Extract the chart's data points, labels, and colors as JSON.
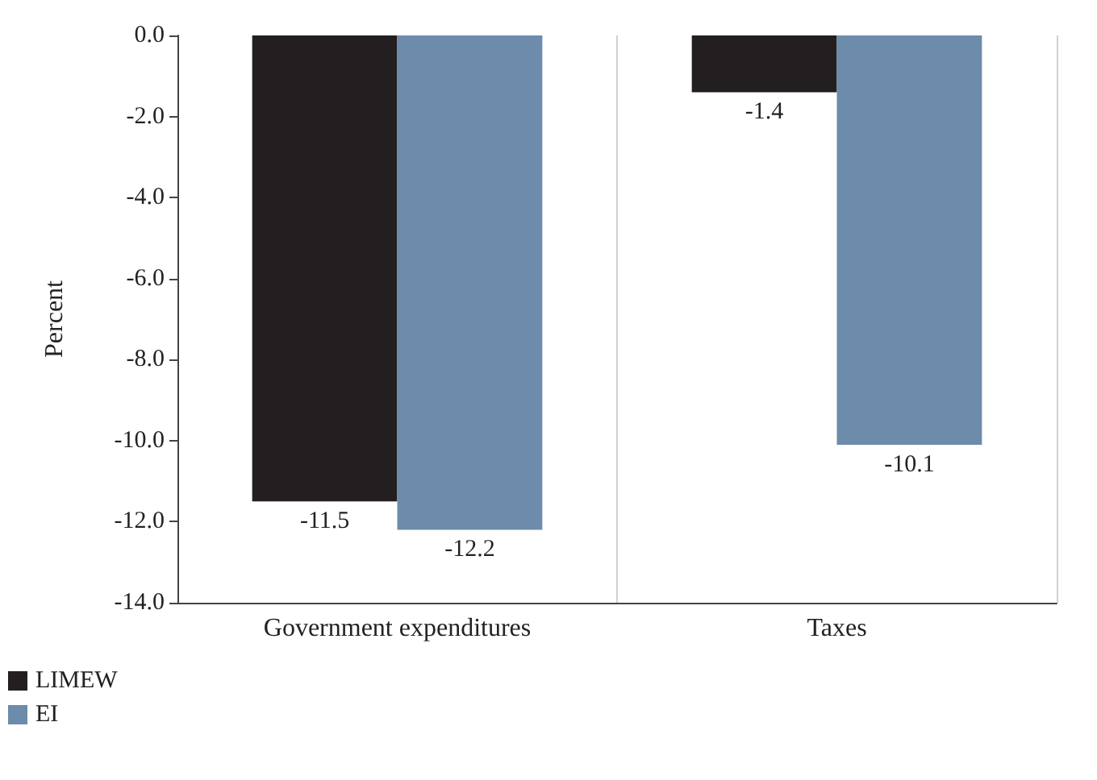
{
  "chart_data": {
    "type": "bar",
    "ylabel": "Percent",
    "categories": [
      "Government expenditures",
      "Taxes"
    ],
    "series": [
      {
        "name": "LIMEW",
        "color": "#231f20",
        "values": [
          -11.5,
          -1.4
        ]
      },
      {
        "name": "EI",
        "color": "#6d8bab",
        "values": [
          -12.2,
          -10.1
        ]
      }
    ],
    "ylim": [
      -14,
      0
    ],
    "yticks": [
      {
        "value": -14,
        "label": "-14.0"
      },
      {
        "value": -12,
        "label": "-12.0"
      },
      {
        "value": -10,
        "label": "-10.0"
      },
      {
        "value": -8,
        "label": "-8.0"
      },
      {
        "value": -6,
        "label": "-6.0"
      },
      {
        "value": -4,
        "label": "-4.0"
      },
      {
        "value": -2,
        "label": "-2.0"
      },
      {
        "value": 0,
        "label": "0.0"
      }
    ],
    "data_labels": true,
    "grid": "x",
    "legend": "bottom left"
  }
}
